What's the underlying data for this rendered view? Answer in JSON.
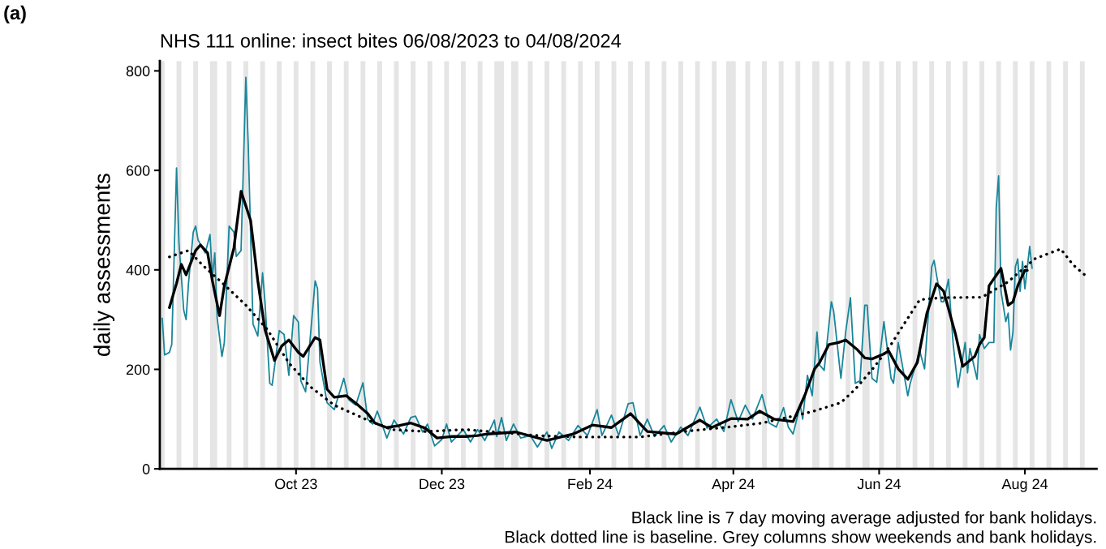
{
  "chart_data": {
    "type": "line",
    "title": "NHS 111 online: insect bites 06/08/2023 to 04/08/2024",
    "ylabel": "daily assessments",
    "annotations": [
      "(a)",
      "Black line is 7 day moving average adjusted for bank holidays.\nBlack dotted line is baseline. Grey columns show weekends and bank holidays."
    ],
    "xlim": [
      "2023-08-05",
      "2024-08-31"
    ],
    "xticks": [
      {
        "value": "2023-10-01",
        "label": "Oct 23"
      },
      {
        "value": "2023-12-01",
        "label": "Dec 23"
      },
      {
        "value": "2024-02-01",
        "label": "Feb 24"
      },
      {
        "value": "2024-04-01",
        "label": "Apr 24"
      },
      {
        "value": "2024-06-01",
        "label": "Jun 24"
      },
      {
        "value": "2024-08-01",
        "label": "Aug 24"
      }
    ],
    "ylim": [
      0,
      820
    ],
    "yticks": [
      0,
      200,
      400,
      600,
      800
    ],
    "grid": false,
    "series": [
      {
        "color": "#1a869a",
        "line_style": "solid",
        "x": [
          "2023-08-06",
          "2023-08-07",
          "2023-08-09",
          "2023-08-10",
          "2023-08-12",
          "2023-08-13",
          "2023-08-15",
          "2023-08-16",
          "2023-08-17",
          "2023-08-19",
          "2023-08-20",
          "2023-08-21",
          "2023-08-24",
          "2023-08-26",
          "2023-08-27",
          "2023-08-28",
          "2023-08-29",
          "2023-08-31",
          "2023-09-01",
          "2023-09-03",
          "2023-09-05",
          "2023-09-06",
          "2023-09-08",
          "2023-09-10",
          "2023-09-11",
          "2023-09-13",
          "2023-09-15",
          "2023-09-17",
          "2023-09-18",
          "2023-09-20",
          "2023-09-21",
          "2023-09-24",
          "2023-09-26",
          "2023-09-28",
          "2023-09-30",
          "2023-10-02",
          "2023-10-03",
          "2023-10-05",
          "2023-10-09",
          "2023-10-10",
          "2023-10-11",
          "2023-10-14",
          "2023-10-17",
          "2023-10-21",
          "2023-10-23",
          "2023-10-26",
          "2023-10-29",
          "2023-10-31",
          "2023-11-02",
          "2023-11-04",
          "2023-11-08",
          "2023-11-11",
          "2023-11-15",
          "2023-11-18",
          "2023-11-20",
          "2023-11-23",
          "2023-11-25",
          "2023-11-28",
          "2023-12-01",
          "2023-12-03",
          "2023-12-05",
          "2023-12-10",
          "2023-12-13",
          "2023-12-16",
          "2023-12-19",
          "2023-12-23",
          "2023-12-24",
          "2023-12-26",
          "2023-12-28",
          "2023-12-31",
          "2024-01-03",
          "2024-01-07",
          "2024-01-10",
          "2024-01-14",
          "2024-01-16",
          "2024-01-19",
          "2024-01-23",
          "2024-01-27",
          "2024-01-31",
          "2024-02-04",
          "2024-02-06",
          "2024-02-10",
          "2024-02-13",
          "2024-02-17",
          "2024-02-19",
          "2024-02-22",
          "2024-02-25",
          "2024-02-28",
          "2024-03-03",
          "2024-03-06",
          "2024-03-10",
          "2024-03-13",
          "2024-03-18",
          "2024-03-21",
          "2024-03-25",
          "2024-03-28",
          "2024-03-31",
          "2024-04-03",
          "2024-04-06",
          "2024-04-09",
          "2024-04-13",
          "2024-04-16",
          "2024-04-19",
          "2024-04-22",
          "2024-04-24",
          "2024-04-26",
          "2024-04-29",
          "2024-04-30",
          "2024-05-02",
          "2024-05-04",
          "2024-05-06",
          "2024-05-07",
          "2024-05-09",
          "2024-05-12",
          "2024-05-13",
          "2024-05-16",
          "2024-05-18",
          "2024-05-20",
          "2024-05-22",
          "2024-05-24",
          "2024-05-26",
          "2024-05-27",
          "2024-05-29",
          "2024-05-31",
          "2024-06-03",
          "2024-06-06",
          "2024-06-07",
          "2024-06-09",
          "2024-06-13",
          "2024-06-14",
          "2024-06-18",
          "2024-06-20",
          "2024-06-23",
          "2024-06-24",
          "2024-06-25",
          "2024-06-27",
          "2024-06-28",
          "2024-06-30",
          "2024-07-02",
          "2024-07-04",
          "2024-07-07",
          "2024-07-08",
          "2024-07-09",
          "2024-07-12",
          "2024-07-13",
          "2024-07-15",
          "2024-07-17",
          "2024-07-19",
          "2024-07-20",
          "2024-07-21",
          "2024-07-22",
          "2024-07-24",
          "2024-07-25",
          "2024-07-26",
          "2024-07-27",
          "2024-07-28",
          "2024-07-29",
          "2024-07-30",
          "2024-07-31",
          "2024-08-01",
          "2024-08-03",
          "2024-08-04"
        ],
        "values": [
          303,
          229,
          234,
          250,
          605,
          455,
          319,
          300,
          373,
          476,
          488,
          460,
          434,
          471,
          385,
          434,
          303,
          226,
          254,
          488,
          476,
          427,
          439,
          787,
          651,
          291,
          267,
          394,
          336,
          172,
          168,
          278,
          270,
          188,
          308,
          295,
          177,
          155,
          378,
          362,
          215,
          133,
          119,
          182,
          139,
          128,
          173,
          100,
          90,
          116,
          62,
          98,
          70,
          103,
          106,
          74,
          90,
          46,
          59,
          90,
          54,
          79,
          54,
          79,
          57,
          98,
          65,
          103,
          57,
          90,
          62,
          67,
          44,
          74,
          41,
          74,
          57,
          87,
          67,
          119,
          67,
          108,
          67,
          131,
          133,
          67,
          100,
          65,
          87,
          54,
          84,
          67,
          124,
          82,
          100,
          75,
          139,
          95,
          128,
          100,
          149,
          92,
          84,
          123,
          84,
          70,
          128,
          100,
          188,
          147,
          275,
          209,
          198,
          336,
          316,
          182,
          275,
          344,
          172,
          177,
          329,
          329,
          182,
          174,
          296,
          182,
          172,
          254,
          147,
          172,
          237,
          201,
          406,
          419,
          390,
          336,
          336,
          381,
          250,
          164,
          254,
          193,
          242,
          180,
          270,
          242,
          254,
          254,
          525,
          589,
          357,
          296,
          313,
          239,
          275,
          406,
          422,
          357,
          417,
          362,
          447,
          403
        ]
      },
      {
        "color": "#000000",
        "line_style": "solid",
        "x": [
          "2023-08-09",
          "2023-08-12",
          "2023-08-14",
          "2023-08-16",
          "2023-08-20",
          "2023-08-22",
          "2023-08-25",
          "2023-08-27",
          "2023-08-30",
          "2023-09-01",
          "2023-09-05",
          "2023-09-08",
          "2023-09-12",
          "2023-09-15",
          "2023-09-18",
          "2023-09-22",
          "2023-09-25",
          "2023-09-28",
          "2023-10-02",
          "2023-10-04",
          "2023-10-09",
          "2023-10-11",
          "2023-10-14",
          "2023-10-17",
          "2023-10-22",
          "2023-10-27",
          "2023-10-31",
          "2023-11-03",
          "2023-11-08",
          "2023-11-13",
          "2023-11-18",
          "2023-11-24",
          "2023-11-29",
          "2023-12-05",
          "2023-12-11",
          "2023-12-16",
          "2023-12-20",
          "2024-01-01",
          "2024-01-14",
          "2024-01-25",
          "2024-02-02",
          "2024-02-10",
          "2024-02-18",
          "2024-02-25",
          "2024-03-08",
          "2024-03-18",
          "2024-03-23",
          "2024-03-31",
          "2024-04-07",
          "2024-04-12",
          "2024-04-18",
          "2024-04-26",
          "2024-05-01",
          "2024-05-05",
          "2024-05-07",
          "2024-05-11",
          "2024-05-15",
          "2024-05-18",
          "2024-05-23",
          "2024-05-26",
          "2024-05-29",
          "2024-06-03",
          "2024-06-05",
          "2024-06-09",
          "2024-06-13",
          "2024-06-17",
          "2024-06-21",
          "2024-06-25",
          "2024-06-28",
          "2024-07-03",
          "2024-07-06",
          "2024-07-11",
          "2024-07-13",
          "2024-07-15",
          "2024-07-17",
          "2024-07-22",
          "2024-07-25",
          "2024-07-27",
          "2024-07-29",
          "2024-08-01",
          "2024-08-02"
        ],
        "values": [
          324,
          373,
          411,
          390,
          439,
          450,
          434,
          378,
          308,
          368,
          444,
          558,
          499,
          378,
          280,
          218,
          247,
          259,
          234,
          226,
          264,
          259,
          160,
          144,
          147,
          128,
          111,
          92,
          83,
          87,
          92,
          82,
          62,
          65,
          65,
          67,
          70,
          74,
          57,
          70,
          88,
          83,
          111,
          75,
          70,
          98,
          83,
          101,
          100,
          116,
          100,
          95,
          149,
          201,
          213,
          250,
          254,
          259,
          239,
          223,
          221,
          231,
          237,
          201,
          180,
          214,
          313,
          372,
          357,
          270,
          206,
          226,
          250,
          264,
          368,
          403,
          329,
          336,
          368,
          399,
          399
        ]
      },
      {
        "color": "#000000",
        "line_style": "dotted",
        "x": [
          "2023-08-09",
          "2023-08-17",
          "2023-08-23",
          "2023-09-01",
          "2023-09-10",
          "2023-09-19",
          "2023-09-28",
          "2023-10-07",
          "2023-10-17",
          "2023-10-30",
          "2023-11-10",
          "2023-11-24",
          "2023-12-11",
          "2024-01-10",
          "2024-01-27",
          "2024-02-22",
          "2024-03-15",
          "2024-04-01",
          "2024-04-13",
          "2024-04-26",
          "2024-05-04",
          "2024-05-16",
          "2024-05-22",
          "2024-05-30",
          "2024-06-06",
          "2024-06-11",
          "2024-06-18",
          "2024-06-27",
          "2024-07-14",
          "2024-07-25",
          "2024-08-05",
          "2024-08-16",
          "2024-08-21",
          "2024-08-26"
        ],
        "values": [
          426,
          439,
          409,
          370,
          329,
          280,
          213,
          165,
          128,
          100,
          79,
          75,
          79,
          67,
          64,
          64,
          77,
          85,
          92,
          106,
          115,
          133,
          160,
          205,
          250,
          288,
          340,
          344,
          345,
          376,
          422,
          442,
          411,
          390
        ]
      }
    ],
    "bands": [
      {
        "axis": "x",
        "from": "2023-08-05",
        "to": "2023-08-07",
        "color": "#e5e5e5"
      },
      {
        "axis": "x",
        "from": "2023-08-12",
        "to": "2023-08-14",
        "color": "#e5e5e5"
      },
      {
        "axis": "x",
        "from": "2023-08-19",
        "to": "2023-08-21",
        "color": "#e5e5e5"
      },
      {
        "axis": "x",
        "from": "2023-08-26",
        "to": "2023-08-29",
        "color": "#e5e5e5"
      },
      {
        "axis": "x",
        "from": "2023-09-02",
        "to": "2023-09-04",
        "color": "#e5e5e5"
      },
      {
        "axis": "x",
        "from": "2023-09-09",
        "to": "2023-09-11",
        "color": "#e5e5e5"
      },
      {
        "axis": "x",
        "from": "2023-09-16",
        "to": "2023-09-18",
        "color": "#e5e5e5"
      },
      {
        "axis": "x",
        "from": "2023-09-23",
        "to": "2023-09-25",
        "color": "#e5e5e5"
      },
      {
        "axis": "x",
        "from": "2023-09-30",
        "to": "2023-10-02",
        "color": "#e5e5e5"
      },
      {
        "axis": "x",
        "from": "2023-10-07",
        "to": "2023-10-09",
        "color": "#e5e5e5"
      },
      {
        "axis": "x",
        "from": "2023-10-14",
        "to": "2023-10-16",
        "color": "#e5e5e5"
      },
      {
        "axis": "x",
        "from": "2023-10-21",
        "to": "2023-10-23",
        "color": "#e5e5e5"
      },
      {
        "axis": "x",
        "from": "2023-10-28",
        "to": "2023-10-30",
        "color": "#e5e5e5"
      },
      {
        "axis": "x",
        "from": "2023-11-04",
        "to": "2023-11-06",
        "color": "#e5e5e5"
      },
      {
        "axis": "x",
        "from": "2023-11-11",
        "to": "2023-11-13",
        "color": "#e5e5e5"
      },
      {
        "axis": "x",
        "from": "2023-11-18",
        "to": "2023-11-20",
        "color": "#e5e5e5"
      },
      {
        "axis": "x",
        "from": "2023-11-25",
        "to": "2023-11-27",
        "color": "#e5e5e5"
      },
      {
        "axis": "x",
        "from": "2023-12-02",
        "to": "2023-12-04",
        "color": "#e5e5e5"
      },
      {
        "axis": "x",
        "from": "2023-12-09",
        "to": "2023-12-11",
        "color": "#e5e5e5"
      },
      {
        "axis": "x",
        "from": "2023-12-16",
        "to": "2023-12-18",
        "color": "#e5e5e5"
      },
      {
        "axis": "x",
        "from": "2023-12-23",
        "to": "2023-12-27",
        "color": "#e5e5e5"
      },
      {
        "axis": "x",
        "from": "2023-12-30",
        "to": "2024-01-02",
        "color": "#e5e5e5"
      },
      {
        "axis": "x",
        "from": "2024-01-06",
        "to": "2024-01-08",
        "color": "#e5e5e5"
      },
      {
        "axis": "x",
        "from": "2024-01-13",
        "to": "2024-01-15",
        "color": "#e5e5e5"
      },
      {
        "axis": "x",
        "from": "2024-01-20",
        "to": "2024-01-22",
        "color": "#e5e5e5"
      },
      {
        "axis": "x",
        "from": "2024-01-27",
        "to": "2024-01-29",
        "color": "#e5e5e5"
      },
      {
        "axis": "x",
        "from": "2024-02-03",
        "to": "2024-02-05",
        "color": "#e5e5e5"
      },
      {
        "axis": "x",
        "from": "2024-02-10",
        "to": "2024-02-12",
        "color": "#e5e5e5"
      },
      {
        "axis": "x",
        "from": "2024-02-17",
        "to": "2024-02-19",
        "color": "#e5e5e5"
      },
      {
        "axis": "x",
        "from": "2024-02-24",
        "to": "2024-02-26",
        "color": "#e5e5e5"
      },
      {
        "axis": "x",
        "from": "2024-03-02",
        "to": "2024-03-04",
        "color": "#e5e5e5"
      },
      {
        "axis": "x",
        "from": "2024-03-09",
        "to": "2024-03-11",
        "color": "#e5e5e5"
      },
      {
        "axis": "x",
        "from": "2024-03-16",
        "to": "2024-03-18",
        "color": "#e5e5e5"
      },
      {
        "axis": "x",
        "from": "2024-03-23",
        "to": "2024-03-25",
        "color": "#e5e5e5"
      },
      {
        "axis": "x",
        "from": "2024-03-29",
        "to": "2024-04-02",
        "color": "#e5e5e5"
      },
      {
        "axis": "x",
        "from": "2024-04-06",
        "to": "2024-04-08",
        "color": "#e5e5e5"
      },
      {
        "axis": "x",
        "from": "2024-04-13",
        "to": "2024-04-15",
        "color": "#e5e5e5"
      },
      {
        "axis": "x",
        "from": "2024-04-20",
        "to": "2024-04-22",
        "color": "#e5e5e5"
      },
      {
        "axis": "x",
        "from": "2024-04-27",
        "to": "2024-04-29",
        "color": "#e5e5e5"
      },
      {
        "axis": "x",
        "from": "2024-05-04",
        "to": "2024-05-07",
        "color": "#e5e5e5"
      },
      {
        "axis": "x",
        "from": "2024-05-11",
        "to": "2024-05-13",
        "color": "#e5e5e5"
      },
      {
        "axis": "x",
        "from": "2024-05-18",
        "to": "2024-05-20",
        "color": "#e5e5e5"
      },
      {
        "axis": "x",
        "from": "2024-05-25",
        "to": "2024-05-28",
        "color": "#e5e5e5"
      },
      {
        "axis": "x",
        "from": "2024-06-01",
        "to": "2024-06-03",
        "color": "#e5e5e5"
      },
      {
        "axis": "x",
        "from": "2024-06-08",
        "to": "2024-06-10",
        "color": "#e5e5e5"
      },
      {
        "axis": "x",
        "from": "2024-06-15",
        "to": "2024-06-17",
        "color": "#e5e5e5"
      },
      {
        "axis": "x",
        "from": "2024-06-22",
        "to": "2024-06-24",
        "color": "#e5e5e5"
      },
      {
        "axis": "x",
        "from": "2024-06-29",
        "to": "2024-07-01",
        "color": "#e5e5e5"
      },
      {
        "axis": "x",
        "from": "2024-07-06",
        "to": "2024-07-08",
        "color": "#e5e5e5"
      },
      {
        "axis": "x",
        "from": "2024-07-13",
        "to": "2024-07-15",
        "color": "#e5e5e5"
      },
      {
        "axis": "x",
        "from": "2024-07-20",
        "to": "2024-07-22",
        "color": "#e5e5e5"
      },
      {
        "axis": "x",
        "from": "2024-07-27",
        "to": "2024-07-29",
        "color": "#e5e5e5"
      },
      {
        "axis": "x",
        "from": "2024-08-03",
        "to": "2024-08-05",
        "color": "#e5e5e5"
      },
      {
        "axis": "x",
        "from": "2024-08-10",
        "to": "2024-08-12",
        "color": "#e5e5e5"
      },
      {
        "axis": "x",
        "from": "2024-08-17",
        "to": "2024-08-19",
        "color": "#e5e5e5"
      },
      {
        "axis": "x",
        "from": "2024-08-24",
        "to": "2024-08-26",
        "color": "#e5e5e5"
      }
    ]
  }
}
